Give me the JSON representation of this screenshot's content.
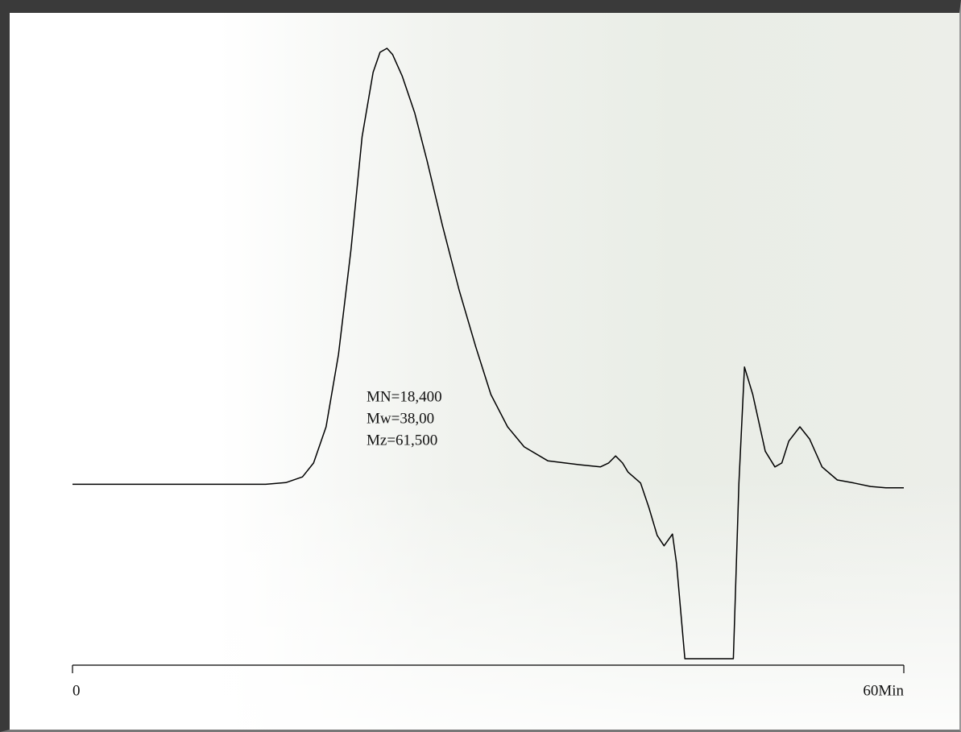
{
  "chart_data": {
    "type": "line",
    "annotations": [
      "MN=18,400",
      "Mw=38,00",
      "Mz=61,500"
    ],
    "x": [
      0,
      13.95,
      15.4,
      16.6,
      17.4,
      18.3,
      19.2,
      20.1,
      20.9,
      21.7,
      22.2,
      22.7,
      23.1,
      23.8,
      24.7,
      25.6,
      26.7,
      27.9,
      29.1,
      30.2,
      31.4,
      32.6,
      34.3,
      36.6,
      38.1,
      38.7,
      39.2,
      39.7,
      40.1,
      41.0,
      41.6,
      42.2,
      42.7,
      43.3,
      43.6,
      44.2,
      47.7,
      48.1,
      48.5,
      49.1,
      50.0,
      50.7,
      51.2,
      51.7,
      52.5,
      53.2,
      54.1,
      55.2,
      56.4,
      57.6,
      58.7,
      60
    ],
    "values": [
      0,
      0,
      0.4,
      1.7,
      4.9,
      13.2,
      29.8,
      53.8,
      79.7,
      94.5,
      99.1,
      100,
      98.6,
      93.6,
      85.2,
      74.1,
      59.4,
      44.6,
      31.6,
      20.6,
      13.2,
      8.6,
      5.4,
      4.5,
      4.0,
      4.9,
      6.5,
      4.9,
      2.8,
      0.3,
      -5.3,
      -11.7,
      -14.1,
      -11.4,
      -18.2,
      -40,
      -40,
      0.3,
      26.9,
      20.6,
      7.6,
      4.0,
      4.9,
      9.9,
      13.2,
      10.4,
      4.0,
      1.0,
      0.3,
      -0.5,
      -0.8,
      -0.8
    ],
    "color": "#000000",
    "xlim": [
      0,
      60
    ],
    "xticks": [
      0,
      {
        "value": 60,
        "label": "60Min"
      }
    ],
    "ylim": [
      -40,
      100
    ]
  }
}
